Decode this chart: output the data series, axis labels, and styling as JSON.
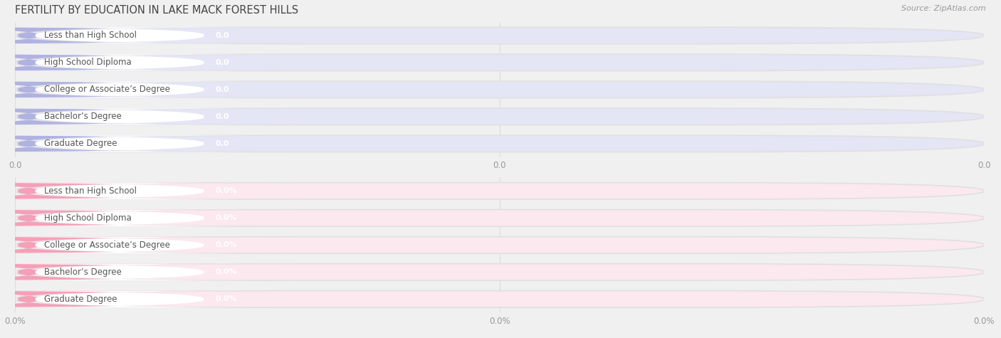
{
  "title": "FERTILITY BY EDUCATION IN LAKE MACK FOREST HILLS",
  "source": "Source: ZipAtlas.com",
  "categories": [
    "Less than High School",
    "High School Diploma",
    "College or Associate’s Degree",
    "Bachelor’s Degree",
    "Graduate Degree"
  ],
  "top_values": [
    0.0,
    0.0,
    0.0,
    0.0,
    0.0
  ],
  "bottom_values": [
    0.0,
    0.0,
    0.0,
    0.0,
    0.0
  ],
  "top_bar_color": "#b0b3e0",
  "top_bar_bg": "#e4e5f5",
  "top_value_color": "#a0a3d8",
  "bottom_bar_color": "#f4a0b8",
  "bottom_bar_bg": "#fce8ef",
  "bottom_value_color": "#f4a0b8",
  "bar_height": 0.62,
  "top_tick_labels": [
    "0.0",
    "0.0",
    "0.0"
  ],
  "bottom_tick_labels": [
    "0.0%",
    "0.0%",
    "0.0%"
  ],
  "background_color": "#f0f0f0",
  "panel_bg": "#f0f0f0",
  "title_color": "#444444",
  "tick_color": "#999999",
  "label_text_color": "#555555",
  "value_text_color": "#ffffff",
  "grid_color": "#dddddd",
  "figsize": [
    14.06,
    4.75
  ]
}
